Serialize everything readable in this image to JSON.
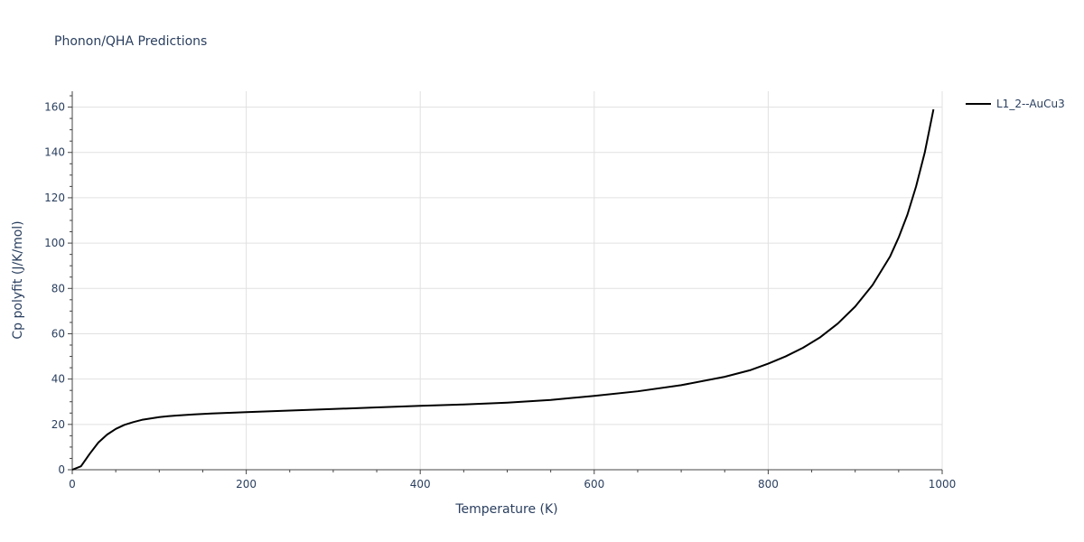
{
  "chart_data": {
    "type": "line",
    "title": "Phonon/QHA Predictions",
    "xlabel": "Temperature (K)",
    "ylabel": "Cp polyfit (J/K/mol)",
    "xlim": [
      0,
      1000
    ],
    "ylim": [
      0,
      167
    ],
    "xticks": [
      0,
      200,
      400,
      600,
      800,
      1000
    ],
    "yticks": [
      0,
      20,
      40,
      60,
      80,
      100,
      120,
      140,
      160
    ],
    "grid": true,
    "legend_position": "top-right",
    "series": [
      {
        "name": "L1_2--AuCu3",
        "color": "#000000",
        "x": [
          0,
          10,
          20,
          30,
          40,
          50,
          60,
          70,
          80,
          90,
          100,
          110,
          120,
          140,
          160,
          180,
          200,
          250,
          300,
          350,
          400,
          450,
          500,
          550,
          600,
          650,
          700,
          750,
          780,
          800,
          820,
          840,
          860,
          880,
          900,
          920,
          940,
          950,
          960,
          970,
          980,
          990
        ],
        "values": [
          0,
          1.5,
          7,
          12,
          15.5,
          18,
          19.8,
          21,
          22,
          22.6,
          23.2,
          23.6,
          23.9,
          24.4,
          24.8,
          25.1,
          25.4,
          26.1,
          26.8,
          27.5,
          28.2,
          28.8,
          29.6,
          30.8,
          32.6,
          34.6,
          37.3,
          41,
          44,
          46.8,
          50,
          53.8,
          58.5,
          64.5,
          72,
          81.5,
          94,
          102.5,
          112.5,
          125,
          140,
          159
        ]
      }
    ]
  }
}
